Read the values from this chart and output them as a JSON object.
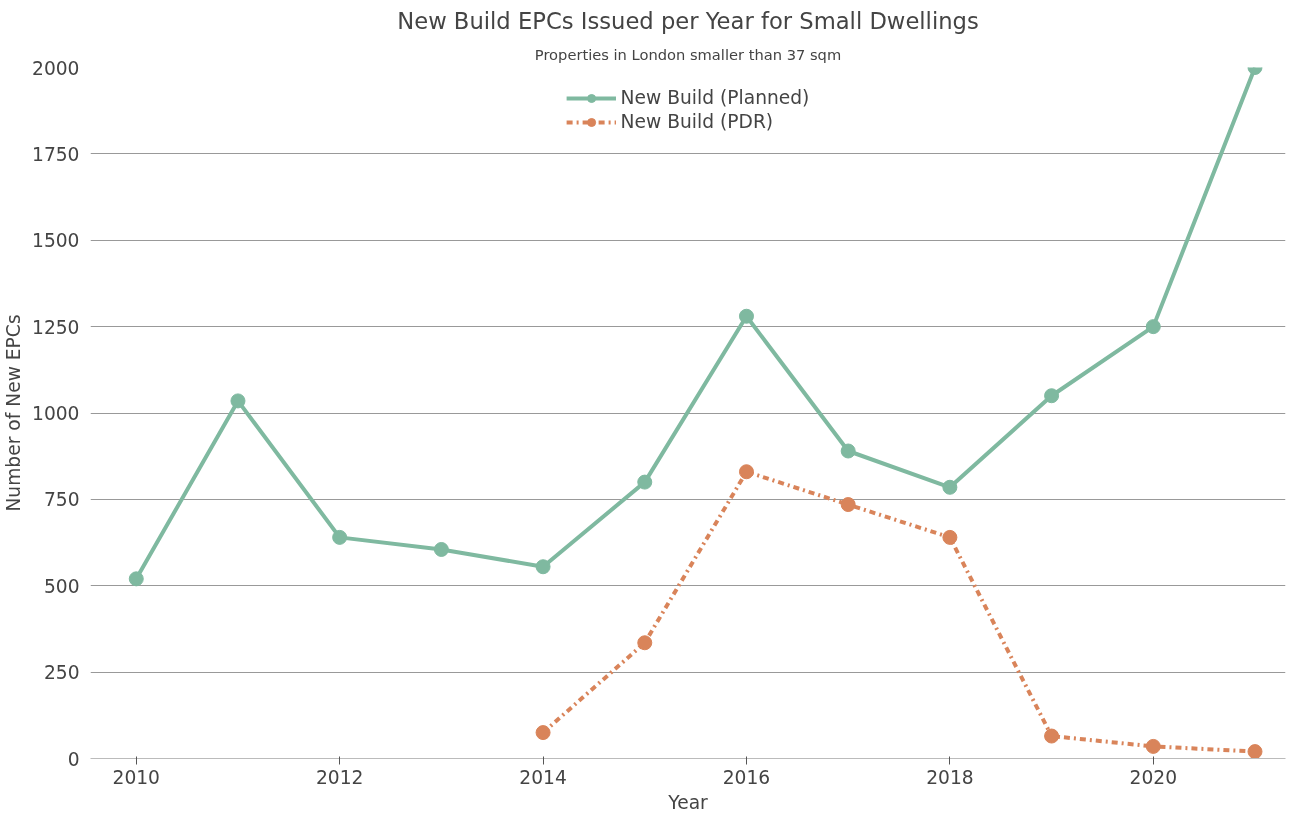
{
  "chart_data": {
    "type": "line",
    "title": "New Build EPCs Issued per Year for Small Dwellings",
    "subtitle": "Properties in London smaller than 37 sqm",
    "xlabel": "Year",
    "ylabel": "Number of New EPCs",
    "x": [
      2010,
      2011,
      2012,
      2013,
      2014,
      2015,
      2016,
      2017,
      2018,
      2019,
      2020,
      2021
    ],
    "series": [
      {
        "name": "New Build (Planned)",
        "color": "#7fb9a0",
        "line_style": "solid",
        "values": [
          520,
          1035,
          640,
          605,
          555,
          800,
          1280,
          890,
          785,
          1050,
          1250,
          2000
        ]
      },
      {
        "name": "New Build (PDR)",
        "color": "#d9845a",
        "line_style": "dashdot",
        "values": [
          null,
          null,
          null,
          null,
          75,
          335,
          830,
          735,
          640,
          65,
          35,
          20
        ]
      }
    ],
    "xlim": [
      2009.55,
      2021.3
    ],
    "ylim": [
      0,
      2000
    ],
    "xticks": [
      2010,
      2012,
      2014,
      2016,
      2018,
      2020
    ],
    "yticks": [
      0,
      250,
      500,
      750,
      1000,
      1250,
      1500,
      1750,
      2000
    ],
    "grid": "y",
    "legend": "top",
    "marker": "circle"
  }
}
